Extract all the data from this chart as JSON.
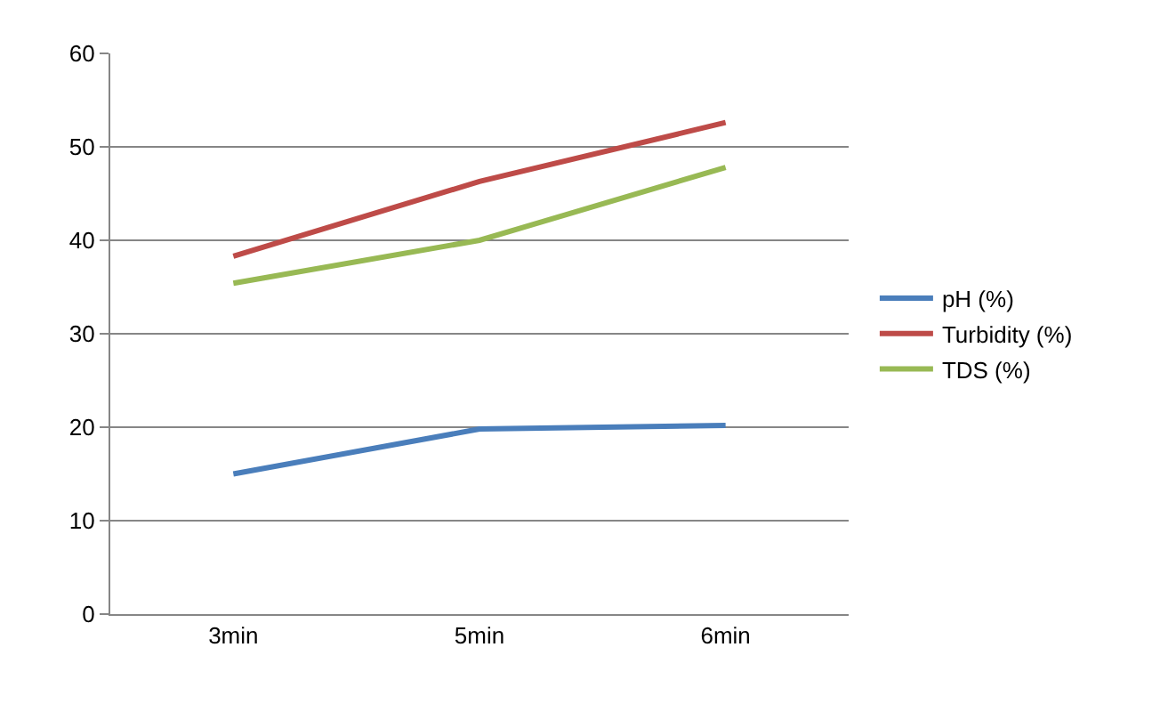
{
  "chart_data": {
    "type": "line",
    "categories": [
      "3min",
      "5min",
      "6min"
    ],
    "series": [
      {
        "name": "pH (%)",
        "color": "#4a7ebb",
        "values": [
          15.0,
          19.8,
          20.2
        ]
      },
      {
        "name": "Turbidity (%)",
        "color": "#be4b48",
        "values": [
          38.3,
          46.3,
          52.6
        ]
      },
      {
        "name": "TDS (%)",
        "color": "#98b954",
        "values": [
          35.4,
          40.0,
          47.8
        ]
      }
    ],
    "ylim": [
      0,
      60
    ],
    "yticks": [
      0,
      10,
      20,
      30,
      40,
      50,
      60
    ],
    "grid": "y",
    "legend": "right",
    "marker": "none",
    "line_style": "solid"
  }
}
